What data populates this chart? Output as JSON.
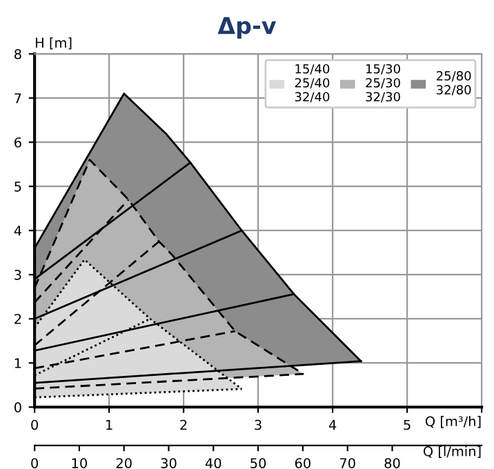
{
  "chart_data": {
    "type": "area",
    "title": "Δp-v",
    "ylabel": "H [m]",
    "xlabel": "Q [m³/h]",
    "x2label": "Q [l/min]",
    "xlim": [
      0,
      6
    ],
    "xticks": [
      0,
      1,
      2,
      3,
      4,
      5,
      {
        "value": 6,
        "label": null
      }
    ],
    "ylim": [
      0,
      8
    ],
    "yticks": [
      0,
      1,
      2,
      3,
      4,
      5,
      6,
      7,
      8
    ],
    "x2lim": [
      0,
      100
    ],
    "x2ticks": [
      0,
      10,
      20,
      30,
      40,
      50,
      60,
      70,
      80
    ],
    "grid": true,
    "legend": "top right",
    "series": [
      {
        "name": "25/80\n32/80",
        "color": "#8c8c8c",
        "line_style": "solid",
        "x": [
          0,
          1.2,
          1.76,
          2.09,
          2.78,
          3.48,
          4.38
        ],
        "values": [
          3.6,
          7.1,
          6.2,
          5.54,
          4.0,
          2.56,
          1.04
        ]
      },
      {
        "type": "line",
        "color": "#000000",
        "line_style": "solid",
        "x": [
          0,
          4.38
        ],
        "values": [
          0.55,
          1.04
        ]
      },
      {
        "name": "15/30\n25/30\n32/30",
        "color": "#b4b4b4",
        "line_style": "dashed",
        "x": [
          0,
          0.74,
          1.26,
          1.67,
          1.85,
          2.69,
          3.61
        ],
        "values": [
          2.7,
          5.6,
          4.7,
          3.75,
          3.44,
          1.72,
          0.75
        ]
      },
      {
        "type": "line",
        "color": "#000000",
        "line_style": "dashed",
        "x": [
          0,
          3.61
        ],
        "values": [
          0.42,
          0.75
        ]
      },
      {
        "name": "15/40\n25/40\n32/40",
        "color": "#dadada",
        "line_style": "dotted",
        "x": [
          0,
          0.67,
          1.55,
          2.78
        ],
        "values": [
          1.8,
          3.34,
          2.0,
          0.41
        ]
      },
      {
        "type": "line",
        "color": "#000000",
        "line_style": "dotted",
        "x": [
          0,
          2.78
        ],
        "values": [
          0.22,
          0.41
        ]
      },
      {
        "type": "line",
        "color": "#000000",
        "line_style": "solid",
        "x": [
          0,
          2.09
        ],
        "values": [
          2.9,
          5.54
        ]
      },
      {
        "type": "line",
        "color": "#000000",
        "line_style": "solid",
        "x": [
          0,
          2.78
        ],
        "values": [
          2.0,
          4.0
        ]
      },
      {
        "type": "line",
        "color": "#000000",
        "line_style": "solid",
        "x": [
          0,
          3.48
        ],
        "values": [
          1.28,
          2.56
        ]
      },
      {
        "type": "line",
        "color": "#000000",
        "line_style": "dashed",
        "x": [
          0,
          1.26
        ],
        "values": [
          2.37,
          4.7
        ]
      },
      {
        "type": "line",
        "color": "#000000",
        "line_style": "dashed",
        "x": [
          0,
          1.67
        ],
        "values": [
          1.4,
          3.75
        ]
      },
      {
        "type": "line",
        "color": "#000000",
        "line_style": "dashed",
        "x": [
          0,
          2.69
        ],
        "values": [
          0.88,
          1.72
        ]
      },
      {
        "type": "line",
        "color": "#000000",
        "line_style": "dotted",
        "x": [
          0,
          1.55
        ],
        "values": [
          0.72,
          2.0
        ]
      }
    ]
  }
}
